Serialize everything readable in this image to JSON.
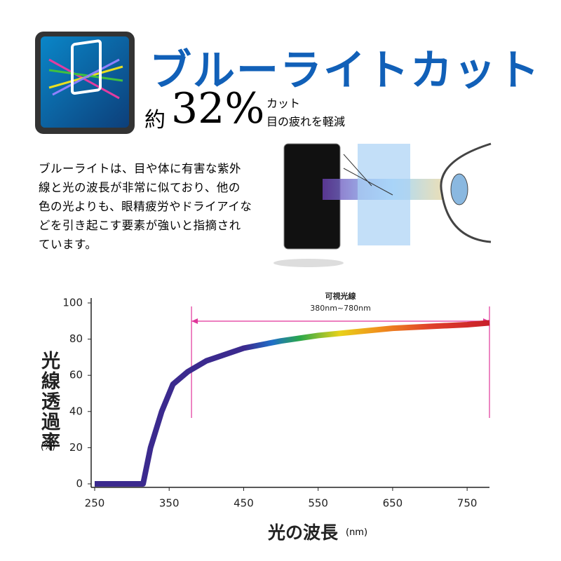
{
  "header": {
    "title": "ブルーライトカット",
    "prefix": "約",
    "rate": "32%",
    "cut": "カット",
    "benefit": "目の疲れを軽減"
  },
  "description": [
    "ブルーライトは、目や体に有害な紫外",
    "線と光の波長が非常に似ており、他の",
    "色の光よりも、眼精疲労やドライアイな",
    "どを引き起こす要素が強いと指摘され",
    "ています。"
  ],
  "chart_data": {
    "type": "line",
    "y_label": "光線透過率",
    "y_unit": "(%)",
    "x_label": "光の波長",
    "x_unit": "(nm)",
    "x": [
      250,
      300,
      315,
      325,
      340,
      355,
      375,
      400,
      450,
      500,
      550,
      600,
      650,
      700,
      750,
      780
    ],
    "values": [
      0,
      0,
      0,
      20,
      40,
      55,
      62,
      68,
      75,
      79,
      82,
      84,
      86,
      87,
      88,
      89
    ],
    "color": "#3b2a8e",
    "xlim": [
      250,
      780
    ],
    "xticks": [
      250,
      350,
      450,
      550,
      650,
      750
    ],
    "ylim": [
      0,
      100
    ],
    "yticks": [
      0,
      20,
      40,
      60,
      80,
      100
    ],
    "annotation": {
      "title": "可視光線",
      "label": "380nm~780nm",
      "range": [
        380,
        780
      ],
      "color": "#e0359a"
    }
  }
}
